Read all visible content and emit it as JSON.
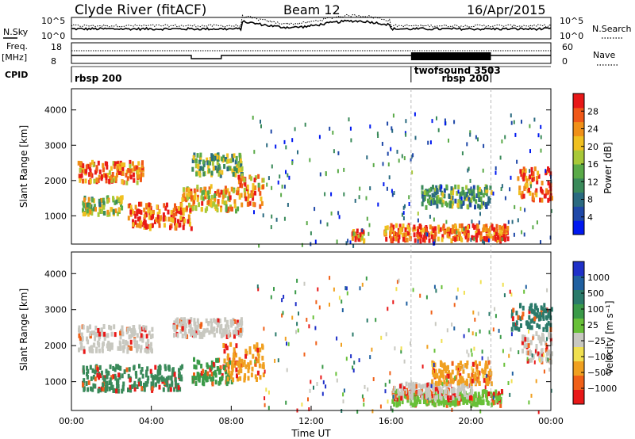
{
  "header": {
    "station": "Clyde River (fitACF)",
    "beam": "Beam 12",
    "date": "16/Apr/2015"
  },
  "chart_data": [
    {
      "type": "line",
      "panel": "noise",
      "ylabel_left": "N.Sky",
      "ylabel_right": "N.Search",
      "left_ticks": [
        "10^5",
        "10^0"
      ],
      "right_ticks": [
        "10^5",
        "10^0"
      ],
      "scale": "log"
    },
    {
      "type": "line",
      "panel": "freq-nave",
      "ylabel_left_top": "Freq.",
      "ylabel_left_unit": "[MHz]",
      "ylabel_right": "Nave",
      "left_ticks": [
        "18",
        "8"
      ],
      "right_ticks": [
        "60",
        "0"
      ]
    },
    {
      "type": "table",
      "panel": "cpid",
      "label": "CPID",
      "programs": [
        {
          "name": "rbsp 200",
          "start_hour": 0
        },
        {
          "name": "twofsound 3503",
          "start_hour": 17
        },
        {
          "name": "rbsp 200",
          "start_hour": 21
        }
      ]
    },
    {
      "type": "heatmap",
      "panel": "power",
      "ylabel": "Slant Range [km]",
      "ylim": [
        200,
        4600
      ],
      "yticks": [
        1000,
        2000,
        3000,
        4000
      ],
      "colorbar_label": "Power [dB]",
      "colorbar_range": [
        0,
        32
      ],
      "colorbar_ticks": [
        4,
        8,
        12,
        16,
        20,
        24,
        28
      ],
      "colors": [
        "#0018f0",
        "#1f48a8",
        "#2a6a80",
        "#3a8a5a",
        "#5aaa48",
        "#a8c838",
        "#f0c020",
        "#f09018",
        "#f05818",
        "#e81818"
      ],
      "blobs": [
        {
          "t": [
            0.3,
            3.6
          ],
          "r": [
            2000,
            2600
          ],
          "level": 0.9
        },
        {
          "t": [
            0.5,
            2.5
          ],
          "r": [
            1100,
            1600
          ],
          "level": 0.6
        },
        {
          "t": [
            2.8,
            6.0
          ],
          "r": [
            700,
            1400
          ],
          "level": 0.95
        },
        {
          "t": [
            5.5,
            8.3
          ],
          "r": [
            1200,
            1900
          ],
          "level": 0.75
        },
        {
          "t": [
            6.0,
            8.5
          ],
          "r": [
            2200,
            2800
          ],
          "level": 0.5
        },
        {
          "t": [
            8.3,
            9.6
          ],
          "r": [
            1300,
            2200
          ],
          "level": 0.8
        },
        {
          "t": [
            14.0,
            14.6
          ],
          "r": [
            350,
            650
          ],
          "level": 0.85
        },
        {
          "t": [
            15.6,
            21.8
          ],
          "r": [
            350,
            800
          ],
          "level": 0.95
        },
        {
          "t": [
            17.5,
            21.0
          ],
          "r": [
            1300,
            1900
          ],
          "level": 0.45
        },
        {
          "t": [
            22.3,
            24.0
          ],
          "r": [
            1500,
            2400
          ],
          "level": 0.95
        }
      ]
    },
    {
      "type": "heatmap",
      "panel": "velocity",
      "ylabel": "Slant Range [km]",
      "ylim": [
        200,
        4600
      ],
      "yticks": [
        1000,
        2000,
        3000,
        4000
      ],
      "xlabel": "Time UT",
      "xticks": [
        "00:00",
        "04:00",
        "08:00",
        "12:00",
        "16:00",
        "20:00",
        "00:00"
      ],
      "xlim": [
        0,
        24
      ],
      "colorbar_label": "Velocity [m s⁻¹]",
      "colorbar_ticks": [
        "1000",
        "500",
        "100",
        "25",
        "−25",
        "−100",
        "−500",
        "−1000"
      ],
      "colors": [
        "#1f30c8",
        "#2060a0",
        "#2a7a6a",
        "#3a9a48",
        "#68c038",
        "#c8c8c0",
        "#f0e050",
        "#f0a020",
        "#f06018",
        "#e81818"
      ],
      "blobs": [
        {
          "t": [
            0.3,
            4.0
          ],
          "r": [
            1900,
            2600
          ],
          "color": "#c8c8c0"
        },
        {
          "t": [
            0.5,
            5.5
          ],
          "r": [
            800,
            1500
          ],
          "color": "#3a8a5a"
        },
        {
          "t": [
            5.0,
            8.5
          ],
          "r": [
            2300,
            2800
          ],
          "color": "#c8c8c0"
        },
        {
          "t": [
            6.0,
            8.0
          ],
          "r": [
            1000,
            1700
          ],
          "color": "#3a9a48"
        },
        {
          "t": [
            7.5,
            9.6
          ],
          "r": [
            1100,
            2100
          ],
          "color": "#f0a020"
        },
        {
          "t": [
            16.0,
            21.5
          ],
          "r": [
            400,
            800
          ],
          "color": "#68c038"
        },
        {
          "t": [
            16.0,
            20.0
          ],
          "r": [
            600,
            1000
          ],
          "color": "#c8c8c0"
        },
        {
          "t": [
            18.0,
            21.0
          ],
          "r": [
            1000,
            1600
          ],
          "color": "#f0a020"
        },
        {
          "t": [
            22.5,
            24.0
          ],
          "r": [
            1600,
            2400
          ],
          "color": "#c8c8c0"
        },
        {
          "t": [
            22.0,
            24.0
          ],
          "r": [
            2500,
            3200
          ],
          "color": "#2a7a6a"
        }
      ]
    }
  ]
}
